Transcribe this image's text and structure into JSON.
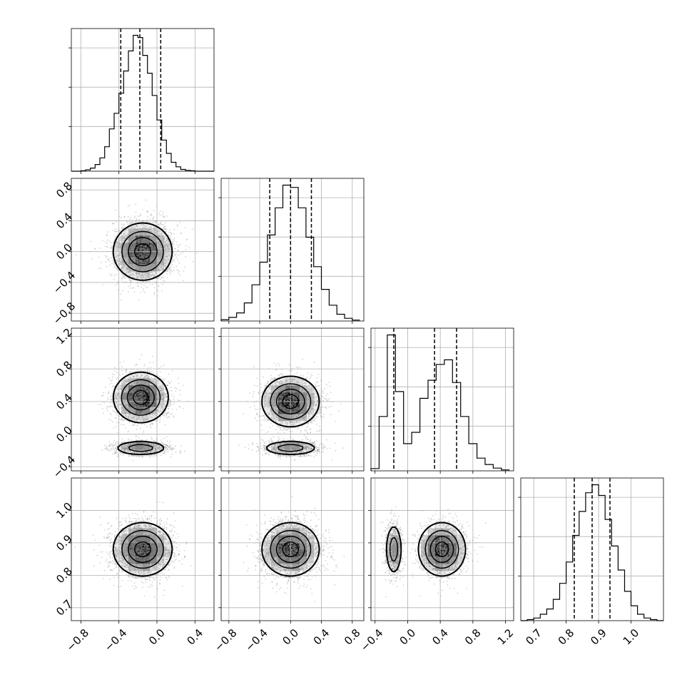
{
  "chart_data": {
    "type": "corner",
    "grid": true,
    "quantiles_shown": [
      0.16,
      0.5,
      0.84
    ],
    "parameters": [
      {
        "range": [
          -0.9,
          0.6
        ],
        "quantiles": [
          -0.38,
          -0.18,
          0.04
        ],
        "ticks": [
          -0.8,
          -0.4,
          0.0,
          0.4
        ],
        "tick_labels": [
          "−0.8",
          "−0.4",
          "0.0",
          "0.4"
        ],
        "hist_bins": [
          -0.9,
          -0.85,
          -0.8,
          -0.75,
          -0.7,
          -0.65,
          -0.6,
          -0.55,
          -0.5,
          -0.45,
          -0.4,
          -0.35,
          -0.3,
          -0.25,
          -0.2,
          -0.15,
          -0.1,
          -0.05,
          0.0,
          0.05,
          0.1,
          0.15,
          0.2,
          0.25,
          0.3,
          0.35,
          0.4,
          0.45,
          0.5,
          0.55,
          0.6
        ],
        "hist_counts": [
          0,
          0,
          1,
          3,
          7,
          15,
          30,
          55,
          95,
          130,
          175,
          225,
          270,
          305,
          300,
          260,
          220,
          170,
          115,
          70,
          40,
          20,
          10,
          4,
          2,
          1,
          0,
          0,
          0,
          0
        ]
      },
      {
        "range": [
          -0.9,
          0.95
        ],
        "quantiles": [
          -0.27,
          0.0,
          0.27
        ],
        "ticks": [
          -0.8,
          -0.4,
          0.0,
          0.4,
          0.8
        ],
        "tick_labels": [
          "−0.8",
          "−0.4",
          "0.0",
          "0.4",
          "0.8"
        ],
        "hist_bins": [
          -0.9,
          -0.8,
          -0.7,
          -0.6,
          -0.5,
          -0.4,
          -0.3,
          -0.2,
          -0.1,
          0.0,
          0.1,
          0.2,
          0.3,
          0.4,
          0.5,
          0.6,
          0.7,
          0.8,
          0.9
        ],
        "hist_counts": [
          3,
          8,
          18,
          40,
          80,
          130,
          190,
          250,
          300,
          295,
          250,
          185,
          120,
          70,
          35,
          15,
          6,
          2
        ]
      },
      {
        "range": [
          -0.45,
          1.3
        ],
        "quantiles": [
          -0.17,
          0.33,
          0.6
        ],
        "ticks": [
          -0.4,
          0.0,
          0.4,
          0.8,
          1.2
        ],
        "tick_labels": [
          "−0.4",
          "0.0",
          "0.4",
          "0.8",
          "1.2"
        ],
        "hist_bins": [
          -0.45,
          -0.35,
          -0.25,
          -0.15,
          -0.05,
          0.05,
          0.15,
          0.25,
          0.35,
          0.45,
          0.55,
          0.65,
          0.75,
          0.85,
          0.95,
          1.05,
          1.15,
          1.25
        ],
        "hist_counts": [
          5,
          120,
          300,
          175,
          60,
          85,
          160,
          200,
          235,
          245,
          195,
          120,
          60,
          28,
          14,
          6,
          2
        ]
      },
      {
        "range": [
          0.66,
          1.1
        ],
        "quantiles": [
          0.825,
          0.88,
          0.935
        ],
        "ticks": [
          0.7,
          0.8,
          0.9,
          1.0
        ],
        "tick_labels": [
          "0.7",
          "0.8",
          "0.9",
          "1.0"
        ],
        "hist_bins": [
          0.66,
          0.68,
          0.7,
          0.72,
          0.74,
          0.76,
          0.78,
          0.8,
          0.82,
          0.84,
          0.86,
          0.88,
          0.9,
          0.92,
          0.94,
          0.96,
          0.98,
          1.0,
          1.02,
          1.04,
          1.06,
          1.08,
          1.1
        ],
        "hist_counts": [
          0,
          2,
          5,
          12,
          22,
          40,
          70,
          110,
          160,
          205,
          240,
          255,
          235,
          190,
          140,
          95,
          55,
          28,
          12,
          5,
          2,
          0
        ]
      }
    ],
    "panels_2d": [
      {
        "x": 0,
        "y": 1,
        "blobs": [
          {
            "cx": -0.15,
            "cy": 0.0,
            "sx": 0.15,
            "sy": 0.18,
            "w": 1.0
          }
        ]
      },
      {
        "x": 0,
        "y": 2,
        "blobs": [
          {
            "cx": -0.17,
            "cy": 0.45,
            "sx": 0.14,
            "sy": 0.15,
            "w": 0.65
          },
          {
            "cx": -0.17,
            "cy": -0.17,
            "sx": 0.14,
            "sy": 0.045,
            "w": 0.35
          }
        ]
      },
      {
        "x": 1,
        "y": 2,
        "blobs": [
          {
            "cx": 0.0,
            "cy": 0.4,
            "sx": 0.18,
            "sy": 0.15,
            "w": 0.65
          },
          {
            "cx": 0.0,
            "cy": -0.17,
            "sx": 0.18,
            "sy": 0.045,
            "w": 0.35
          }
        ]
      },
      {
        "x": 0,
        "y": 3,
        "blobs": [
          {
            "cx": -0.15,
            "cy": 0.88,
            "sx": 0.15,
            "sy": 0.04,
            "w": 1.0
          }
        ]
      },
      {
        "x": 1,
        "y": 3,
        "blobs": [
          {
            "cx": 0.0,
            "cy": 0.88,
            "sx": 0.18,
            "sy": 0.04,
            "w": 1.0
          }
        ]
      },
      {
        "x": 2,
        "y": 3,
        "blobs": [
          {
            "cx": -0.17,
            "cy": 0.88,
            "sx": 0.05,
            "sy": 0.04,
            "w": 0.35
          },
          {
            "cx": 0.42,
            "cy": 0.88,
            "sx": 0.14,
            "sy": 0.04,
            "w": 0.65
          }
        ]
      }
    ]
  }
}
